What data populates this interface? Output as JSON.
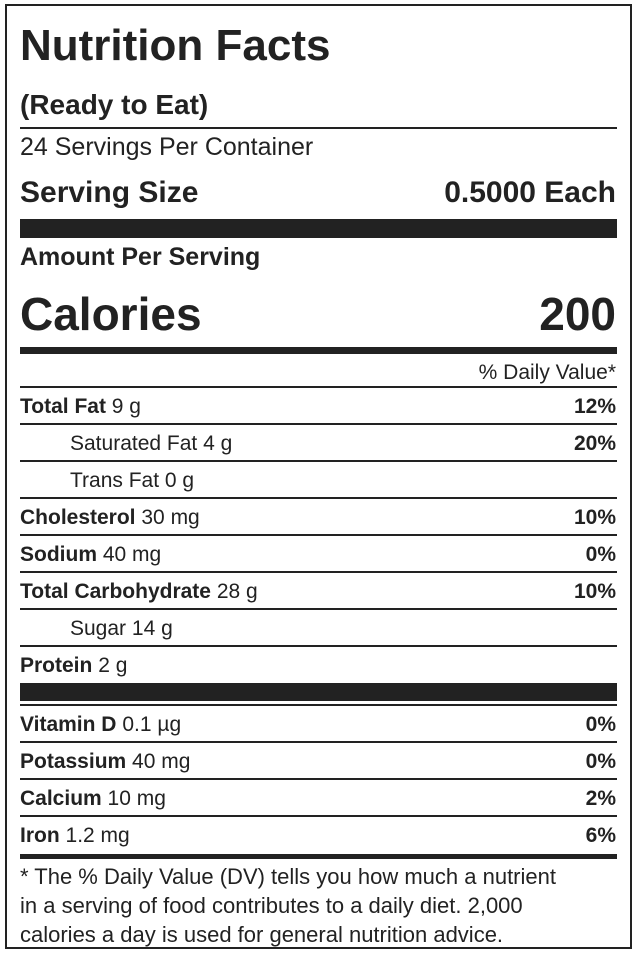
{
  "header": {
    "title": "Nutrition Facts",
    "subtitle": "(Ready to Eat)",
    "servings": "24 Servings Per Container",
    "serving_size_label": "Serving Size",
    "serving_size": "0.5000 Each"
  },
  "calories": {
    "heading": "Amount Per Serving",
    "label": "Calories",
    "value": 200
  },
  "dv_heading": "% Daily Value*",
  "nutrients": [
    {
      "name": "Total Fat",
      "amount": "9 g",
      "dv": "12%",
      "sub": [
        {
          "name": "Saturated Fat",
          "amount": "4 g",
          "dv": "20%"
        },
        {
          "name": "Trans Fat",
          "amount": "0 g"
        }
      ]
    },
    {
      "name": "Cholesterol",
      "amount": "30 mg",
      "dv": "10%"
    },
    {
      "name": "Sodium",
      "amount": "40 mg",
      "dv": "0%"
    },
    {
      "name": "Total Carbohydrate",
      "amount": "28 g",
      "dv": "10%",
      "sub": [
        {
          "name": "Sugar",
          "amount": "14 g"
        }
      ]
    },
    {
      "name": "Protein",
      "amount": "2 g"
    }
  ],
  "vitamins": [
    {
      "name": "Vitamin D",
      "amount": "0.1 µg",
      "dv": "0%"
    },
    {
      "name": "Potassium",
      "amount": "40 mg",
      "dv": "0%"
    },
    {
      "name": "Calcium",
      "amount": "10 mg",
      "dv": "2%"
    },
    {
      "name": "Iron",
      "amount": "1.2 mg",
      "dv": "6%"
    }
  ],
  "footnote": [
    "* The % Daily Value (DV) tells you how much a nutrient",
    "in a serving of food contributes to a daily diet. 2,000",
    "calories a day is used for general nutrition advice."
  ]
}
